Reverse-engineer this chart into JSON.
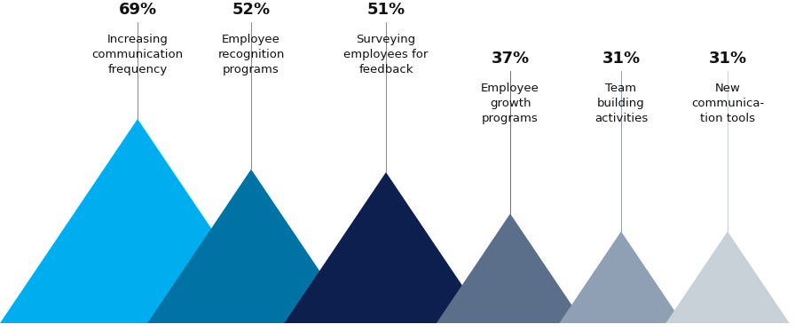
{
  "categories": [
    "Increasing\ncommunication\nfrequency",
    "Employee\nrecognition\nprograms",
    "Surveying\nemployees for\nfeedback",
    "Employee\ngrowth\nprograms",
    "Team\nbuilding\nactivities",
    "New\ncommunica-\ntion tools"
  ],
  "percentages": [
    "69%",
    "52%",
    "51%",
    "37%",
    "31%",
    "31%"
  ],
  "values": [
    69,
    52,
    51,
    37,
    31,
    31
  ],
  "colors": [
    "#00AEEF",
    "#0072A3",
    "#0D1F4E",
    "#5B6F8A",
    "#8FA0B5",
    "#C8D0D8"
  ],
  "line_colors": [
    "#888888",
    "#888888",
    "#888888",
    "#5B6F8A",
    "#8FA0B5",
    "#C8D0D8"
  ],
  "background_color": "#ffffff",
  "pct_fontsize": 13,
  "label_fontsize": 9.5
}
